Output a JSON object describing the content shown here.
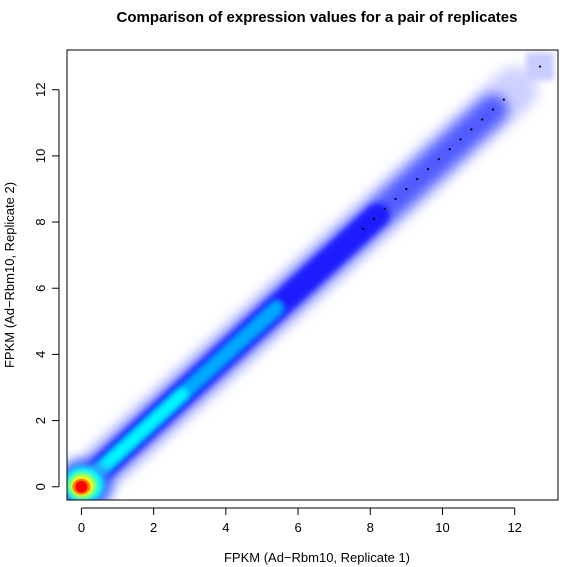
{
  "chart_data": {
    "type": "scatter",
    "title": "Comparison of expression values for a pair of replicates",
    "xlabel": "FPKM (Ad−Rbm10, Replicate 1)",
    "ylabel": "FPKM (Ad−Rbm10, Replicate 2)",
    "xlim": [
      -0.4,
      13.2
    ],
    "ylim": [
      -0.4,
      13.2
    ],
    "xticks": [
      0,
      2,
      4,
      6,
      8,
      10,
      12
    ],
    "yticks": [
      0,
      2,
      4,
      6,
      8,
      10,
      12
    ],
    "rendering": "smoothed density scatter (smoothScatter)",
    "density_ridge": {
      "description": "Density concentrated along the identity line y = x, highest near (0,0)",
      "x": [
        0,
        0.5,
        1,
        2,
        3,
        4,
        5,
        6,
        7,
        8,
        9,
        10,
        11,
        12,
        12.8
      ],
      "y": [
        0,
        0.5,
        1,
        2,
        3,
        4,
        5,
        6,
        7,
        8,
        9,
        10,
        11,
        12,
        12.8
      ]
    },
    "outlier_points": {
      "x": [
        7.8,
        8.1,
        8.4,
        8.7,
        9.0,
        9.3,
        9.6,
        9.9,
        10.2,
        10.5,
        10.8,
        11.1,
        11.4,
        11.7,
        12.7
      ],
      "y": [
        7.8,
        8.1,
        8.4,
        8.7,
        9.0,
        9.3,
        9.6,
        9.9,
        10.2,
        10.5,
        10.8,
        11.1,
        11.4,
        11.7,
        12.7
      ]
    },
    "colors": {
      "low": "#ffffff",
      "mid_low": "#1a1aff",
      "mid": "#00ffff",
      "high": "#ffff00",
      "peak": "#ff0000"
    }
  }
}
